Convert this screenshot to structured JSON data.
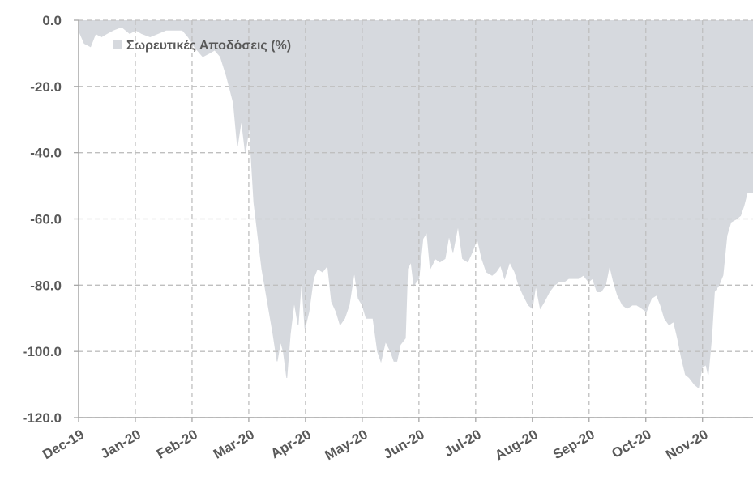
{
  "chart_data": {
    "type": "area",
    "series": [
      {
        "name": "Σωρευτικές Αποδόσεις (%)",
        "color": "#d6d9de",
        "x": [
          0,
          0.1,
          0.21,
          0.3,
          0.4,
          0.5,
          0.61,
          0.76,
          0.9,
          1.01,
          1.11,
          1.26,
          1.4,
          1.54,
          1.69,
          1.83,
          1.93,
          2.04,
          2.19,
          2.3,
          2.4,
          2.5,
          2.61,
          2.73,
          2.8,
          2.87,
          2.94,
          3.01,
          3.09,
          3.16,
          3.23,
          3.33,
          3.43,
          3.5,
          3.56,
          3.61,
          3.67,
          3.73,
          3.8,
          3.87,
          3.93,
          3.99,
          4.06,
          4.14,
          4.21,
          4.3,
          4.39,
          4.46,
          4.54,
          4.61,
          4.69,
          4.77,
          4.86,
          4.93,
          5,
          5.07,
          5.19,
          5.27,
          5.33,
          5.41,
          5.5,
          5.56,
          5.61,
          5.67,
          5.76,
          5.8,
          5.86,
          5.91,
          6,
          6.07,
          6.14,
          6.2,
          6.29,
          6.37,
          6.46,
          6.53,
          6.6,
          6.69,
          6.77,
          6.86,
          6.94,
          7.03,
          7.11,
          7.19,
          7.29,
          7.36,
          7.44,
          7.51,
          7.6,
          7.69,
          7.76,
          7.84,
          7.93,
          8,
          8.06,
          8.14,
          8.21,
          8.3,
          8.39,
          8.47,
          8.56,
          8.64,
          8.73,
          8.81,
          8.9,
          8.99,
          9.06,
          9.14,
          9.21,
          9.29,
          9.36,
          9.43,
          9.5,
          9.59,
          9.67,
          9.76,
          9.84,
          9.93,
          10.01,
          10.1,
          10.19,
          10.26,
          10.33,
          10.41,
          10.49,
          10.56,
          10.63,
          10.7,
          10.77,
          10.86,
          10.93,
          10.99,
          11.06,
          11.1,
          11.16,
          11.21,
          11.29,
          11.36,
          11.43,
          11.5,
          11.6,
          11.67,
          11.73,
          11.79,
          11.89
        ],
        "values": [
          -3,
          -7,
          -8,
          -4,
          -5,
          -4,
          -3,
          -2,
          -4,
          -3,
          -4,
          -5,
          -4,
          -3,
          -3,
          -3,
          -5,
          -8,
          -11,
          -10,
          -9,
          -11,
          -17,
          -25,
          -38,
          -30,
          -40,
          -32,
          -55,
          -65,
          -75,
          -85,
          -95,
          -103,
          -97,
          -100,
          -108,
          -95,
          -85,
          -92,
          -78,
          -93,
          -88,
          -78,
          -75,
          -76,
          -74,
          -85,
          -88,
          -92,
          -90,
          -86,
          -76,
          -84,
          -86,
          -90,
          -90,
          -100,
          -103,
          -97,
          -100,
          -103,
          -103,
          -98,
          -96,
          -75,
          -73,
          -80,
          -78,
          -66,
          -64,
          -75,
          -72,
          -73,
          -72,
          -65,
          -70,
          -62,
          -72,
          -73,
          -70,
          -66,
          -72,
          -76,
          -77,
          -76,
          -74,
          -78,
          -73,
          -76,
          -80,
          -83,
          -86,
          -87,
          -80,
          -87,
          -85,
          -82,
          -80,
          -79,
          -79,
          -78,
          -78,
          -78,
          -77,
          -79,
          -78,
          -82,
          -82,
          -80,
          -74,
          -79,
          -83,
          -86,
          -87,
          -86,
          -86,
          -87,
          -88,
          -84,
          -83,
          -86,
          -90,
          -92,
          -91,
          -96,
          -102,
          -107,
          -108,
          -110,
          -111,
          -105,
          -104,
          -107,
          -96,
          -82,
          -80,
          -77,
          -65,
          -61,
          -60,
          -59,
          -56,
          -52,
          -52
        ]
      }
    ],
    "xlim": [
      0,
      11.89
    ],
    "xticks": [
      {
        "value": 0,
        "label": "Dec-19"
      },
      {
        "value": 1,
        "label": "Jan-20"
      },
      {
        "value": 2,
        "label": "Feb-20"
      },
      {
        "value": 3,
        "label": "Mar-20"
      },
      {
        "value": 4,
        "label": "Apr-20"
      },
      {
        "value": 5,
        "label": "May-20"
      },
      {
        "value": 6,
        "label": "Jun-20"
      },
      {
        "value": 7,
        "label": "Jul-20"
      },
      {
        "value": 8,
        "label": "Aug-20"
      },
      {
        "value": 9,
        "label": "Sep-20"
      },
      {
        "value": 10,
        "label": "Oct-20"
      },
      {
        "value": 11,
        "label": "Nov-20"
      }
    ],
    "ylim": [
      -120,
      0
    ],
    "yticks": [
      {
        "value": 0,
        "label": "0.0"
      },
      {
        "value": -20,
        "label": "-20.0"
      },
      {
        "value": -40,
        "label": "-40.0"
      },
      {
        "value": -60,
        "label": "-60.0"
      },
      {
        "value": -80,
        "label": "-80.0"
      },
      {
        "value": -100,
        "label": "-100.0"
      },
      {
        "value": -120,
        "label": "-120.0"
      }
    ],
    "grid": true,
    "legend": "upper left"
  }
}
